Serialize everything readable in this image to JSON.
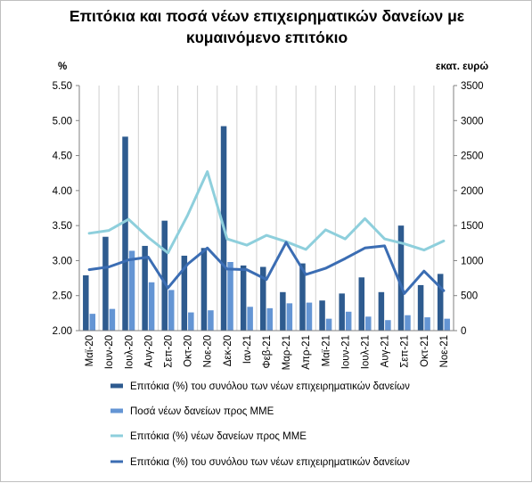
{
  "chart_data": {
    "type": "bar",
    "title_lines": [
      "Επιτόκια και ποσά νέων επιχειρηματικών δανείων με",
      "κυμαινόμενο επιτόκιο"
    ],
    "y_left_unit": "%",
    "y_right_unit": "εκατ. ευρώ",
    "y_left_range": [
      2.0,
      5.5
    ],
    "y_right_range": [
      0,
      3500
    ],
    "y_left_ticks": [
      "2.00",
      "2.50",
      "3.00",
      "3.50",
      "4.00",
      "4.50",
      "5.00",
      "5.50"
    ],
    "y_right_ticks": [
      "0",
      "500",
      "1000",
      "1500",
      "2000",
      "2500",
      "3000",
      "3500"
    ],
    "grid": "vertical lines at category boundaries",
    "legend_position": "bottom",
    "categories": [
      "Μαϊ-20",
      "Ιουν-20",
      "Ιουλ-20",
      "Αυγ-20",
      "Σεπ-20",
      "Οκτ-20",
      "Νοε-20",
      "Δεκ-20",
      "Ιαν-21",
      "Φεβ-21",
      "Μαρ-21",
      "Απρ-21",
      "Μαϊ-21",
      "Ιουν-21",
      "Ιουλ-21",
      "Αυγ-21",
      "Σεπ-21",
      "Οκτ-21",
      "Νοε-21"
    ],
    "series": [
      {
        "name": "Επιτόκια (%) του συνόλου των νέων επιχειρηματικών δανείων",
        "kind": "bar",
        "axis": "left",
        "color": "#2e5b8f",
        "values": [
          2.79,
          3.34,
          4.77,
          3.21,
          3.57,
          3.07,
          3.18,
          4.92,
          2.93,
          2.91,
          2.55,
          2.96,
          2.43,
          2.53,
          2.76,
          2.55,
          3.5,
          2.65,
          2.81
        ]
      },
      {
        "name": "Ποσά νέων δανείων προς ΜΜΕ",
        "kind": "bar",
        "axis": "right",
        "color": "#6495d4",
        "values": [
          240,
          310,
          1140,
          690,
          580,
          260,
          290,
          980,
          340,
          320,
          390,
          400,
          170,
          270,
          200,
          150,
          220,
          190,
          170
        ]
      },
      {
        "name": "Επιτόκια (%) νέων δανείων προς ΜΜΕ",
        "kind": "line",
        "axis": "left",
        "color": "#8ecfdc",
        "values": [
          3.39,
          3.43,
          3.59,
          3.33,
          3.11,
          3.65,
          4.27,
          3.31,
          3.22,
          3.36,
          3.27,
          3.16,
          3.44,
          3.31,
          3.6,
          3.31,
          3.24,
          3.15,
          3.28
        ]
      },
      {
        "name": "Επιτόκια (%) του συνόλου των νέων επιχειρηματικών δανείων",
        "kind": "line",
        "axis": "left",
        "color": "#3b6db3",
        "values": [
          2.87,
          2.91,
          3.01,
          3.05,
          2.61,
          2.95,
          3.18,
          2.88,
          2.87,
          2.73,
          3.26,
          2.8,
          2.89,
          3.03,
          3.18,
          3.21,
          2.53,
          2.85,
          2.57
        ]
      }
    ]
  }
}
